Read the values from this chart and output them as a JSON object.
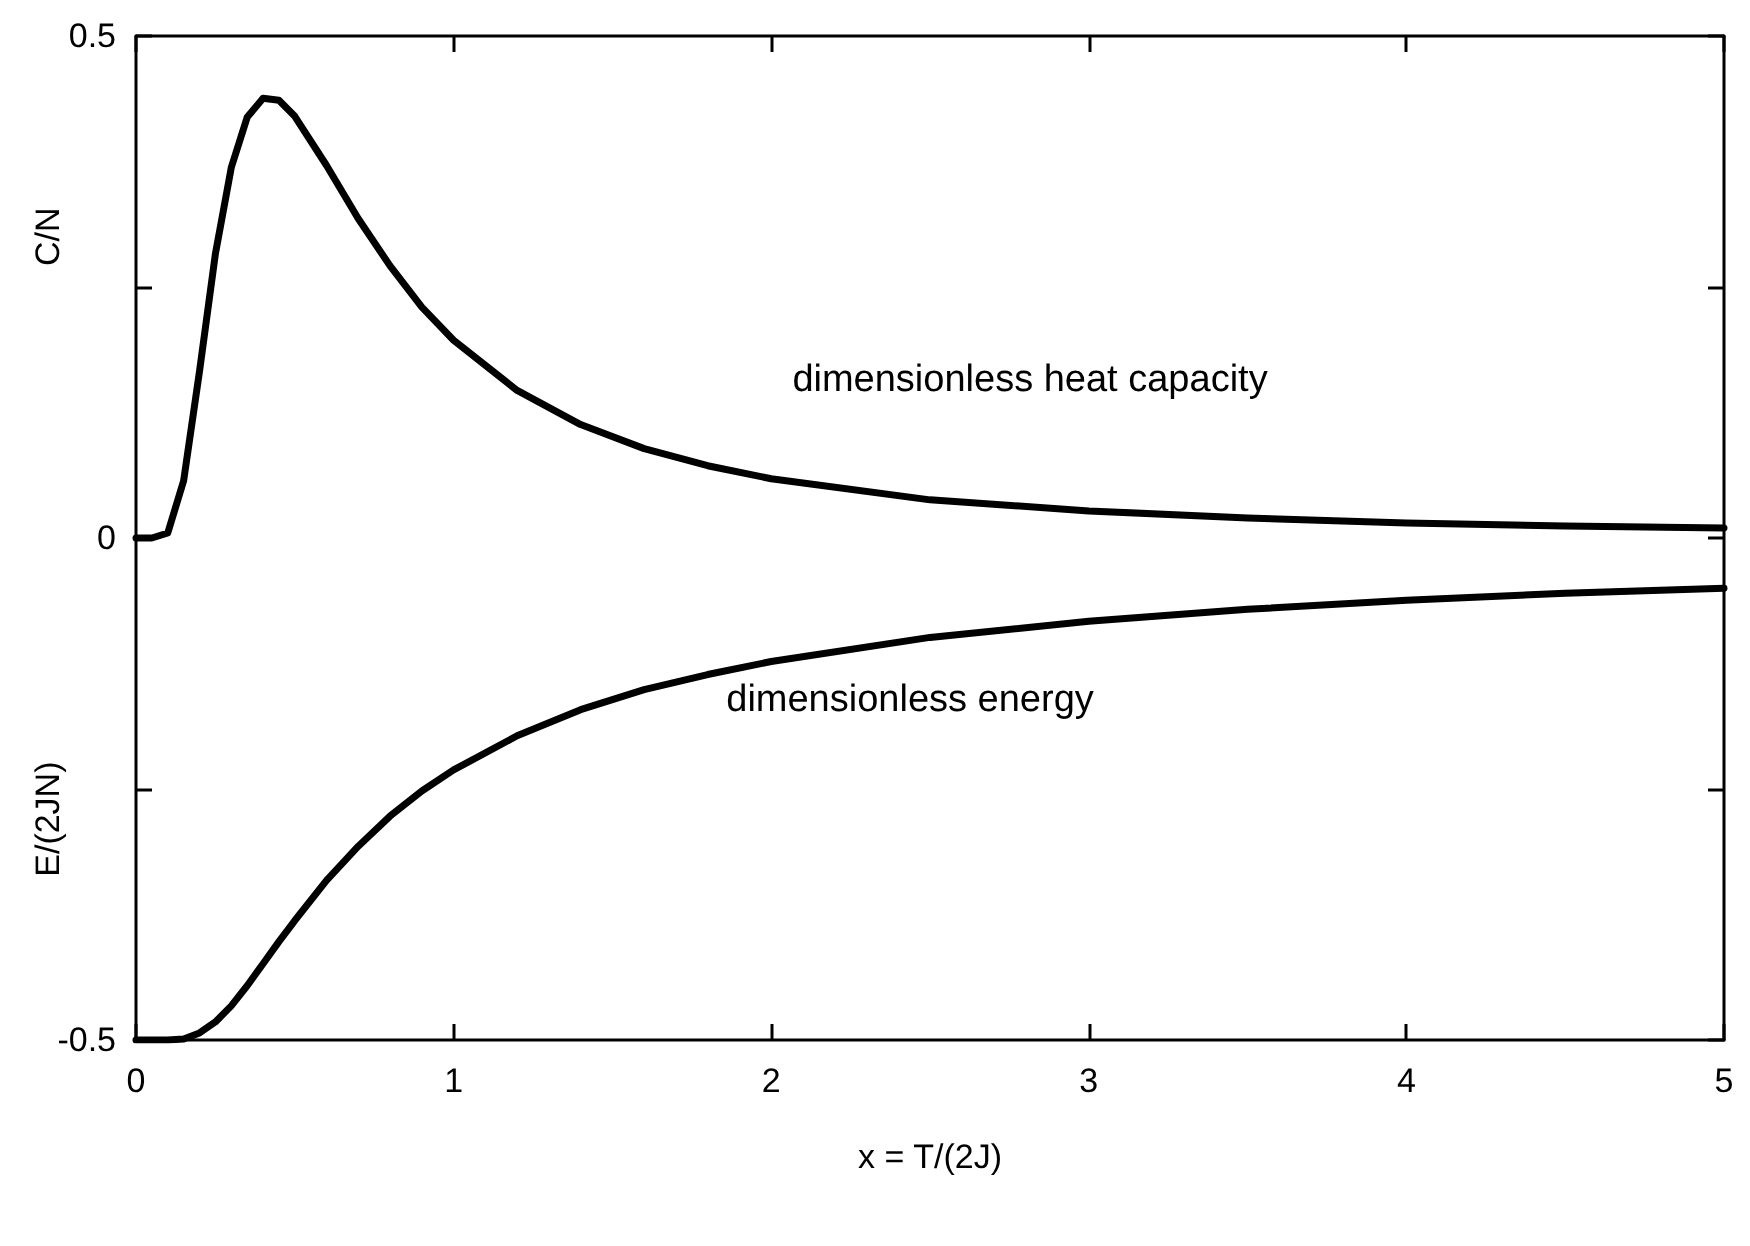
{
  "chart_data": {
    "type": "line",
    "xlabel": "x = T/(2J)",
    "ylabel": "C/N",
    "x": [
      0,
      0.05,
      0.1,
      0.15,
      0.2,
      0.25,
      0.3,
      0.35,
      0.4,
      0.45,
      0.5,
      0.6,
      0.7,
      0.8,
      0.9,
      1.0,
      1.2,
      1.4,
      1.6,
      1.8,
      2.0,
      2.5,
      3,
      3.5,
      4,
      4.5,
      5
    ],
    "series": [
      {
        "color": "#000000",
        "values": [
          0,
          0,
          0.005,
          0.057,
          0.166,
          0.283,
          0.369,
          0.419,
          0.438,
          0.436,
          0.42,
          0.371,
          0.318,
          0.271,
          0.23,
          0.197,
          0.147,
          0.113,
          0.089,
          0.072,
          0.059,
          0.038,
          0.027,
          0.02,
          0.015,
          0.012,
          0.01
        ]
      },
      {
        "color": "#000000",
        "values": [
          -0.5,
          -0.5,
          -0.5,
          -0.499,
          -0.493,
          -0.482,
          -0.466,
          -0.446,
          -0.424,
          -0.402,
          -0.381,
          -0.341,
          -0.307,
          -0.277,
          -0.252,
          -0.231,
          -0.197,
          -0.171,
          -0.151,
          -0.136,
          -0.123,
          -0.099,
          -0.083,
          -0.071,
          -0.062,
          -0.055,
          -0.05
        ]
      }
    ],
    "annotations": [
      "dimensionless heat capacity",
      "dimensionless energy",
      "E/(2JN)"
    ],
    "xlim": [
      0,
      5
    ],
    "ylim": [
      -0.5,
      0.5
    ],
    "xticks": [
      0,
      1,
      2,
      3,
      4,
      5
    ],
    "yticks": [
      -0.5,
      {
        "value": -0.25,
        "label": null
      },
      0,
      {
        "value": 0.25,
        "label": null
      },
      0.5
    ],
    "grid": false,
    "marker": "none",
    "line_style": "solid"
  }
}
